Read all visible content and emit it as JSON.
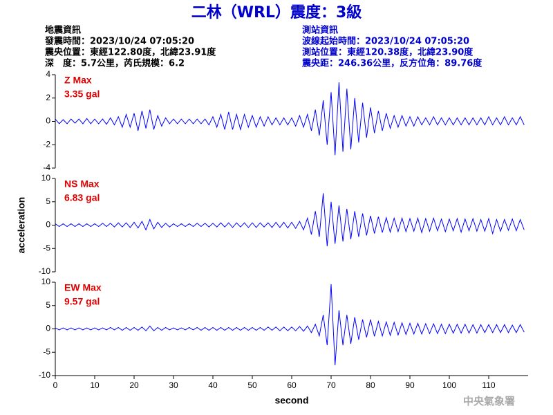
{
  "title": "二林（WRL）震度：3級",
  "header": {
    "left": [
      "地震資訊",
      "發震時間：2023/10/24 07:05:20",
      "震央位置：東經122.80度，北緯23.91度",
      "深　度：5.7公里，芮氏規模：6.2"
    ],
    "right": [
      "測站資訊",
      "波線起始時間：2023/10/24 07:05:20",
      "測站位置：東經120.38度，北緯23.90度",
      "震央距：246.36公里，反方位角：89.76度"
    ]
  },
  "watermark": "中央氣象署",
  "chart_data": [
    {
      "type": "line",
      "color": "#0000ff",
      "annotations": [
        "Z Max",
        "3.35 gal"
      ],
      "xlim": [
        0,
        120
      ],
      "ylim": [
        -4,
        4
      ],
      "yticks": [
        -4,
        -2,
        0,
        2,
        4
      ],
      "x": [
        0,
        1,
        2,
        3,
        4,
        5,
        6,
        7,
        8,
        9,
        10,
        11,
        12,
        13,
        14,
        15,
        16,
        17,
        18,
        19,
        20,
        21,
        22,
        23,
        24,
        25,
        26,
        27,
        28,
        29,
        30,
        31,
        32,
        33,
        34,
        35,
        36,
        37,
        38,
        39,
        40,
        41,
        42,
        43,
        44,
        45,
        46,
        47,
        48,
        49,
        50,
        51,
        52,
        53,
        54,
        55,
        56,
        57,
        58,
        59,
        60,
        61,
        62,
        63,
        64,
        65,
        66,
        67,
        68,
        69,
        70,
        71,
        72,
        73,
        74,
        75,
        76,
        77,
        78,
        79,
        80,
        81,
        82,
        83,
        84,
        85,
        86,
        87,
        88,
        89,
        90,
        91,
        92,
        93,
        94,
        95,
        96,
        97,
        98,
        99,
        100,
        101,
        102,
        103,
        104,
        105,
        106,
        107,
        108,
        109,
        110,
        111,
        112,
        113,
        114,
        115,
        116,
        117,
        118,
        119
      ],
      "values": [
        0.2,
        -0.2,
        0.15,
        -0.2,
        0.2,
        -0.15,
        0.2,
        -0.2,
        0.25,
        -0.2,
        0.2,
        -0.2,
        0.2,
        -0.25,
        0.3,
        -0.3,
        0.4,
        -0.5,
        0.6,
        -0.5,
        0.7,
        -0.8,
        0.9,
        -0.6,
        1.0,
        -0.7,
        0.5,
        -0.4,
        0.3,
        -0.2,
        0.2,
        -0.2,
        0.2,
        -0.2,
        0.2,
        -0.2,
        0.2,
        -0.2,
        0.2,
        -0.3,
        0.4,
        -0.5,
        0.6,
        -0.7,
        0.8,
        -0.7,
        0.6,
        -0.7,
        0.6,
        -0.5,
        0.5,
        -0.5,
        0.4,
        -0.4,
        0.4,
        -0.3,
        0.3,
        -0.3,
        0.3,
        -0.3,
        0.3,
        -0.4,
        0.5,
        -0.5,
        0.6,
        -0.8,
        1.0,
        -1.2,
        1.8,
        -2.0,
        2.5,
        -2.9,
        3.35,
        -2.6,
        2.8,
        -2.4,
        2.0,
        -1.8,
        1.6,
        -1.4,
        1.2,
        -1.0,
        0.9,
        -0.8,
        0.7,
        -0.6,
        0.5,
        -0.5,
        0.5,
        -0.4,
        0.4,
        -0.4,
        0.4,
        -0.3,
        0.3,
        -0.3,
        0.4,
        -0.3,
        0.3,
        -0.3,
        0.3,
        -0.3,
        0.3,
        -0.3,
        0.3,
        -0.3,
        0.3,
        -0.3,
        0.3,
        -0.3,
        0.4,
        -0.3,
        0.3,
        -0.3,
        0.4,
        -0.3,
        0.3,
        -0.3,
        0.4,
        -0.3
      ]
    },
    {
      "type": "line",
      "color": "#0000ff",
      "annotations": [
        "NS Max",
        "6.83 gal"
      ],
      "ylabel": "acceleration",
      "xlim": [
        0,
        120
      ],
      "ylim": [
        -10,
        10
      ],
      "yticks": [
        -10,
        -5,
        0,
        5,
        10
      ],
      "x": [
        0,
        1,
        2,
        3,
        4,
        5,
        6,
        7,
        8,
        9,
        10,
        11,
        12,
        13,
        14,
        15,
        16,
        17,
        18,
        19,
        20,
        21,
        22,
        23,
        24,
        25,
        26,
        27,
        28,
        29,
        30,
        31,
        32,
        33,
        34,
        35,
        36,
        37,
        38,
        39,
        40,
        41,
        42,
        43,
        44,
        45,
        46,
        47,
        48,
        49,
        50,
        51,
        52,
        53,
        54,
        55,
        56,
        57,
        58,
        59,
        60,
        61,
        62,
        63,
        64,
        65,
        66,
        67,
        68,
        69,
        70,
        71,
        72,
        73,
        74,
        75,
        76,
        77,
        78,
        79,
        80,
        81,
        82,
        83,
        84,
        85,
        86,
        87,
        88,
        89,
        90,
        91,
        92,
        93,
        94,
        95,
        96,
        97,
        98,
        99,
        100,
        101,
        102,
        103,
        104,
        105,
        106,
        107,
        108,
        109,
        110,
        111,
        112,
        113,
        114,
        115,
        116,
        117,
        118,
        119
      ],
      "values": [
        0.3,
        -0.3,
        0.3,
        -0.3,
        0.3,
        -0.3,
        0.3,
        -0.3,
        0.3,
        -0.3,
        0.3,
        -0.3,
        0.4,
        -0.3,
        0.4,
        -0.4,
        0.5,
        -0.4,
        0.5,
        -0.5,
        0.6,
        -0.6,
        0.8,
        -1.0,
        1.2,
        -0.8,
        0.6,
        -0.5,
        0.4,
        -0.4,
        0.3,
        -0.3,
        0.3,
        -0.3,
        0.3,
        -0.3,
        0.4,
        -0.3,
        0.4,
        -0.4,
        0.4,
        -0.4,
        0.5,
        -0.4,
        0.5,
        -0.5,
        0.5,
        -0.4,
        0.5,
        -0.5,
        0.5,
        -0.5,
        0.5,
        -0.4,
        0.5,
        -0.5,
        0.6,
        -0.5,
        0.6,
        -0.6,
        0.6,
        -0.7,
        0.8,
        -1.0,
        1.5,
        -2.0,
        3.0,
        -2.5,
        6.83,
        -4.5,
        5.0,
        -4.0,
        4.2,
        -3.5,
        3.5,
        -3.0,
        3.0,
        -2.5,
        2.5,
        -2.2,
        2.0,
        -1.8,
        1.8,
        -1.6,
        1.6,
        -1.5,
        1.5,
        -1.4,
        1.5,
        -1.4,
        1.4,
        -1.3,
        1.5,
        -1.6,
        1.4,
        -1.3,
        1.5,
        -1.2,
        1.3,
        -1.4,
        1.3,
        -1.2,
        1.4,
        -1.5,
        1.3,
        -1.2,
        1.4,
        -1.3,
        1.2,
        -1.3,
        1.4,
        -1.8,
        1.2,
        -1.3,
        1.2,
        -1.1,
        1.3,
        -1.2,
        1.2,
        -1.0
      ]
    },
    {
      "type": "line",
      "color": "#0000ff",
      "annotations": [
        "EW Max",
        "9.57 gal"
      ],
      "xlabel": "second",
      "xlim": [
        0,
        120
      ],
      "xticks": [
        0,
        10,
        20,
        30,
        40,
        50,
        60,
        70,
        80,
        90,
        100,
        110
      ],
      "ylim": [
        -10,
        10
      ],
      "yticks": [
        -10,
        -5,
        0,
        5,
        10
      ],
      "x": [
        0,
        1,
        2,
        3,
        4,
        5,
        6,
        7,
        8,
        9,
        10,
        11,
        12,
        13,
        14,
        15,
        16,
        17,
        18,
        19,
        20,
        21,
        22,
        23,
        24,
        25,
        26,
        27,
        28,
        29,
        30,
        31,
        32,
        33,
        34,
        35,
        36,
        37,
        38,
        39,
        40,
        41,
        42,
        43,
        44,
        45,
        46,
        47,
        48,
        49,
        50,
        51,
        52,
        53,
        54,
        55,
        56,
        57,
        58,
        59,
        60,
        61,
        62,
        63,
        64,
        65,
        66,
        67,
        68,
        69,
        70,
        71,
        72,
        73,
        74,
        75,
        76,
        77,
        78,
        79,
        80,
        81,
        82,
        83,
        84,
        85,
        86,
        87,
        88,
        89,
        90,
        91,
        92,
        93,
        94,
        95,
        96,
        97,
        98,
        99,
        100,
        101,
        102,
        103,
        104,
        105,
        106,
        107,
        108,
        109,
        110,
        111,
        112,
        113,
        114,
        115,
        116,
        117,
        118,
        119
      ],
      "values": [
        0.2,
        -0.2,
        0.2,
        -0.2,
        0.2,
        -0.2,
        0.2,
        -0.2,
        0.2,
        -0.2,
        0.2,
        -0.2,
        0.2,
        -0.2,
        0.3,
        -0.2,
        0.3,
        -0.3,
        0.3,
        -0.3,
        0.3,
        -0.3,
        0.4,
        -0.4,
        0.6,
        -0.4,
        0.3,
        -0.3,
        0.3,
        -0.2,
        0.2,
        -0.2,
        0.2,
        -0.2,
        0.3,
        -0.2,
        0.3,
        -0.3,
        0.3,
        -0.3,
        0.3,
        -0.3,
        0.3,
        -0.3,
        0.3,
        -0.3,
        0.3,
        -0.3,
        0.3,
        -0.3,
        0.3,
        -0.3,
        0.3,
        -0.3,
        0.4,
        -0.3,
        0.4,
        -0.4,
        0.4,
        -0.4,
        0.4,
        -0.4,
        0.5,
        -0.5,
        0.6,
        -0.8,
        1.0,
        -1.5,
        3.0,
        -3.5,
        9.57,
        -7.8,
        4.0,
        -3.5,
        3.0,
        -3.2,
        2.5,
        -2.3,
        2.0,
        -1.8,
        2.0,
        -1.6,
        1.6,
        -1.5,
        1.5,
        -1.4,
        1.4,
        -1.3,
        1.3,
        -1.2,
        1.2,
        -1.1,
        1.2,
        -1.1,
        1.1,
        -1.0,
        1.1,
        -1.0,
        1.0,
        -1.0,
        1.0,
        -0.9,
        1.0,
        -0.9,
        1.0,
        -0.9,
        0.9,
        -0.9,
        0.9,
        -0.8,
        0.9,
        -0.8,
        0.9,
        -0.8,
        0.9,
        -0.8,
        0.8,
        -0.8,
        0.9,
        -0.7
      ]
    }
  ]
}
